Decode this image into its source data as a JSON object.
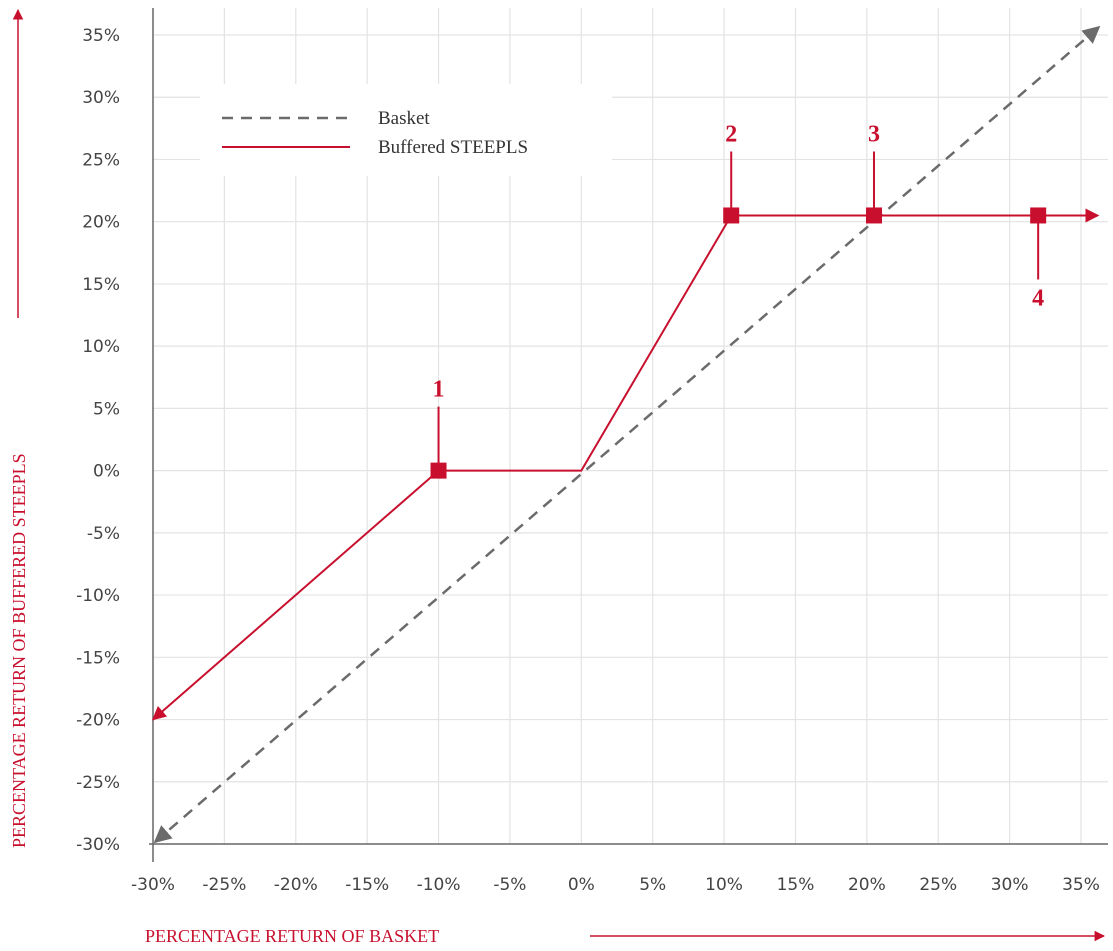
{
  "chart_data": {
    "type": "line",
    "xlabel": "PERCENTAGE RETURN OF BASKET",
    "ylabel": "PERCENTAGE RETURN OF BUFFERED STEEPLS",
    "xlim": [
      -30,
      35
    ],
    "ylim": [
      -30,
      35
    ],
    "x_ticks": [
      -30,
      -25,
      -20,
      -15,
      -10,
      -5,
      0,
      5,
      10,
      15,
      20,
      25,
      30,
      35
    ],
    "y_ticks": [
      -30,
      -25,
      -20,
      -15,
      -10,
      -5,
      0,
      5,
      10,
      15,
      20,
      25,
      30,
      35
    ],
    "x_tick_labels": [
      "-30%",
      "-25%",
      "-20%",
      "-15%",
      "-10%",
      "-5%",
      "0%",
      "5%",
      "10%",
      "15%",
      "20%",
      "25%",
      "30%",
      "35%"
    ],
    "y_tick_labels": [
      "-30%",
      "-25%",
      "-20%",
      "-15%",
      "-10%",
      "-5%",
      "0%",
      "5%",
      "10%",
      "15%",
      "20%",
      "25%",
      "30%",
      "35%"
    ],
    "grid": true,
    "legend": {
      "placement": "top-left"
    },
    "series": [
      {
        "name": "Basket",
        "style": "dashed",
        "color": "#6b6b6b",
        "x": [
          -30,
          35
        ],
        "y": [
          -30,
          35
        ]
      },
      {
        "name": "Buffered STEEPLS",
        "style": "solid",
        "color": "#c8102e",
        "x": [
          -30,
          -10,
          0,
          10.5,
          20.5,
          32,
          37
        ],
        "y": [
          -20,
          0,
          0,
          20.5,
          20.5,
          20.5,
          20.5
        ]
      }
    ],
    "markers": [
      {
        "label": "1",
        "x": -10,
        "y": 0,
        "label_pos": "above"
      },
      {
        "label": "2",
        "x": 10.5,
        "y": 20.5,
        "label_pos": "above"
      },
      {
        "label": "3",
        "x": 20.5,
        "y": 20.5,
        "label_pos": "above"
      },
      {
        "label": "4",
        "x": 32,
        "y": 20.5,
        "label_pos": "below"
      }
    ],
    "colors": {
      "accent": "#c8102e",
      "basket": "#6b6b6b",
      "grid": "#e3e3e3",
      "axis": "#666666"
    }
  }
}
